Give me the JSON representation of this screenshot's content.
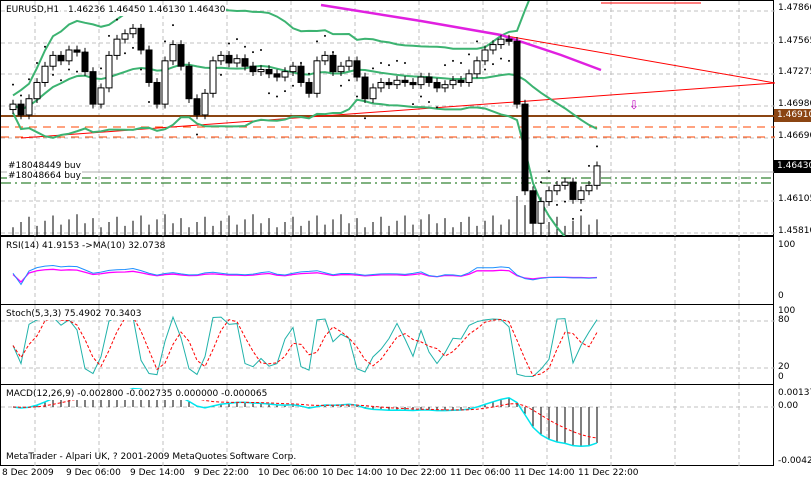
{
  "main": {
    "symbol_label": "EURUSD,H1",
    "ohlc_label": "1.46236 1.46450 1.46130 1.46430",
    "order_labels": [
      "#18048449 buy",
      "#18048664 buy"
    ],
    "price_ticks": [
      "1.47860",
      "1.47565",
      "1.47275",
      "1.46980",
      "1.46690",
      "1.46105",
      "1.45810"
    ],
    "highlight_price": "1.46910",
    "current_price": "1.46430",
    "colors": {
      "bull": "#000000",
      "bear": "#000000",
      "bands": "#3cb371",
      "ma": "#e020e0",
      "trend": "#ff0000",
      "hline": "#8b4513",
      "current": "#000000"
    }
  },
  "rsi": {
    "label": "RSI(14) 41.9153  ->MA(10) 32.0738",
    "ticks": [
      "100",
      "0"
    ]
  },
  "stoch": {
    "label": "Stoch(5,3,3) 75.4902 70.3403",
    "ticks": [
      "100",
      "80",
      "20",
      "0"
    ]
  },
  "macd": {
    "label": "MACD(12,26,9) -0.002800 -0.002735 0.000000 -0.000065",
    "ticks": [
      "0.001375",
      "0.00",
      "-0.00420"
    ]
  },
  "footer": {
    "copyright": "MetaTrader - Alpari UK, ? 2001-2009 MetaQuotes Software Corp."
  },
  "time_axis": [
    "8 Dec 2009",
    "9 Dec 06:00",
    "9 Dec 14:00",
    "9 Dec 22:00",
    "10 Dec 06:00",
    "10 Dec 14:00",
    "10 Dec 22:00",
    "11 Dec 06:00",
    "11 Dec 14:00",
    "11 Dec 22:00"
  ],
  "chart_data": {
    "type": "candlestick",
    "symbol": "EURUSD",
    "timeframe": "H1",
    "ylim": [
      1.4581,
      1.4786
    ],
    "closes": [
      1.47,
      1.469,
      1.4705,
      1.472,
      1.4735,
      1.4745,
      1.474,
      1.475,
      1.4748,
      1.473,
      1.47,
      1.4715,
      1.4745,
      1.476,
      1.4765,
      1.477,
      1.475,
      1.472,
      1.47,
      1.474,
      1.4755,
      1.4735,
      1.4705,
      1.469,
      1.471,
      1.474,
      1.4745,
      1.4738,
      1.4742,
      1.4735,
      1.473,
      1.4732,
      1.4728,
      1.4725,
      1.473,
      1.4735,
      1.472,
      1.471,
      1.474,
      1.4745,
      1.473,
      1.4735,
      1.474,
      1.4725,
      1.4705,
      1.4715,
      1.472,
      1.4718,
      1.4722,
      1.472,
      1.4718,
      1.4725,
      1.472,
      1.4715,
      1.4718,
      1.4722,
      1.472,
      1.4728,
      1.474,
      1.475,
      1.4755,
      1.476,
      1.4758,
      1.47,
      1.462,
      1.459,
      1.461,
      1.462,
      1.4625,
      1.4628,
      1.4612,
      1.462,
      1.4625,
      1.4643
    ]
  }
}
